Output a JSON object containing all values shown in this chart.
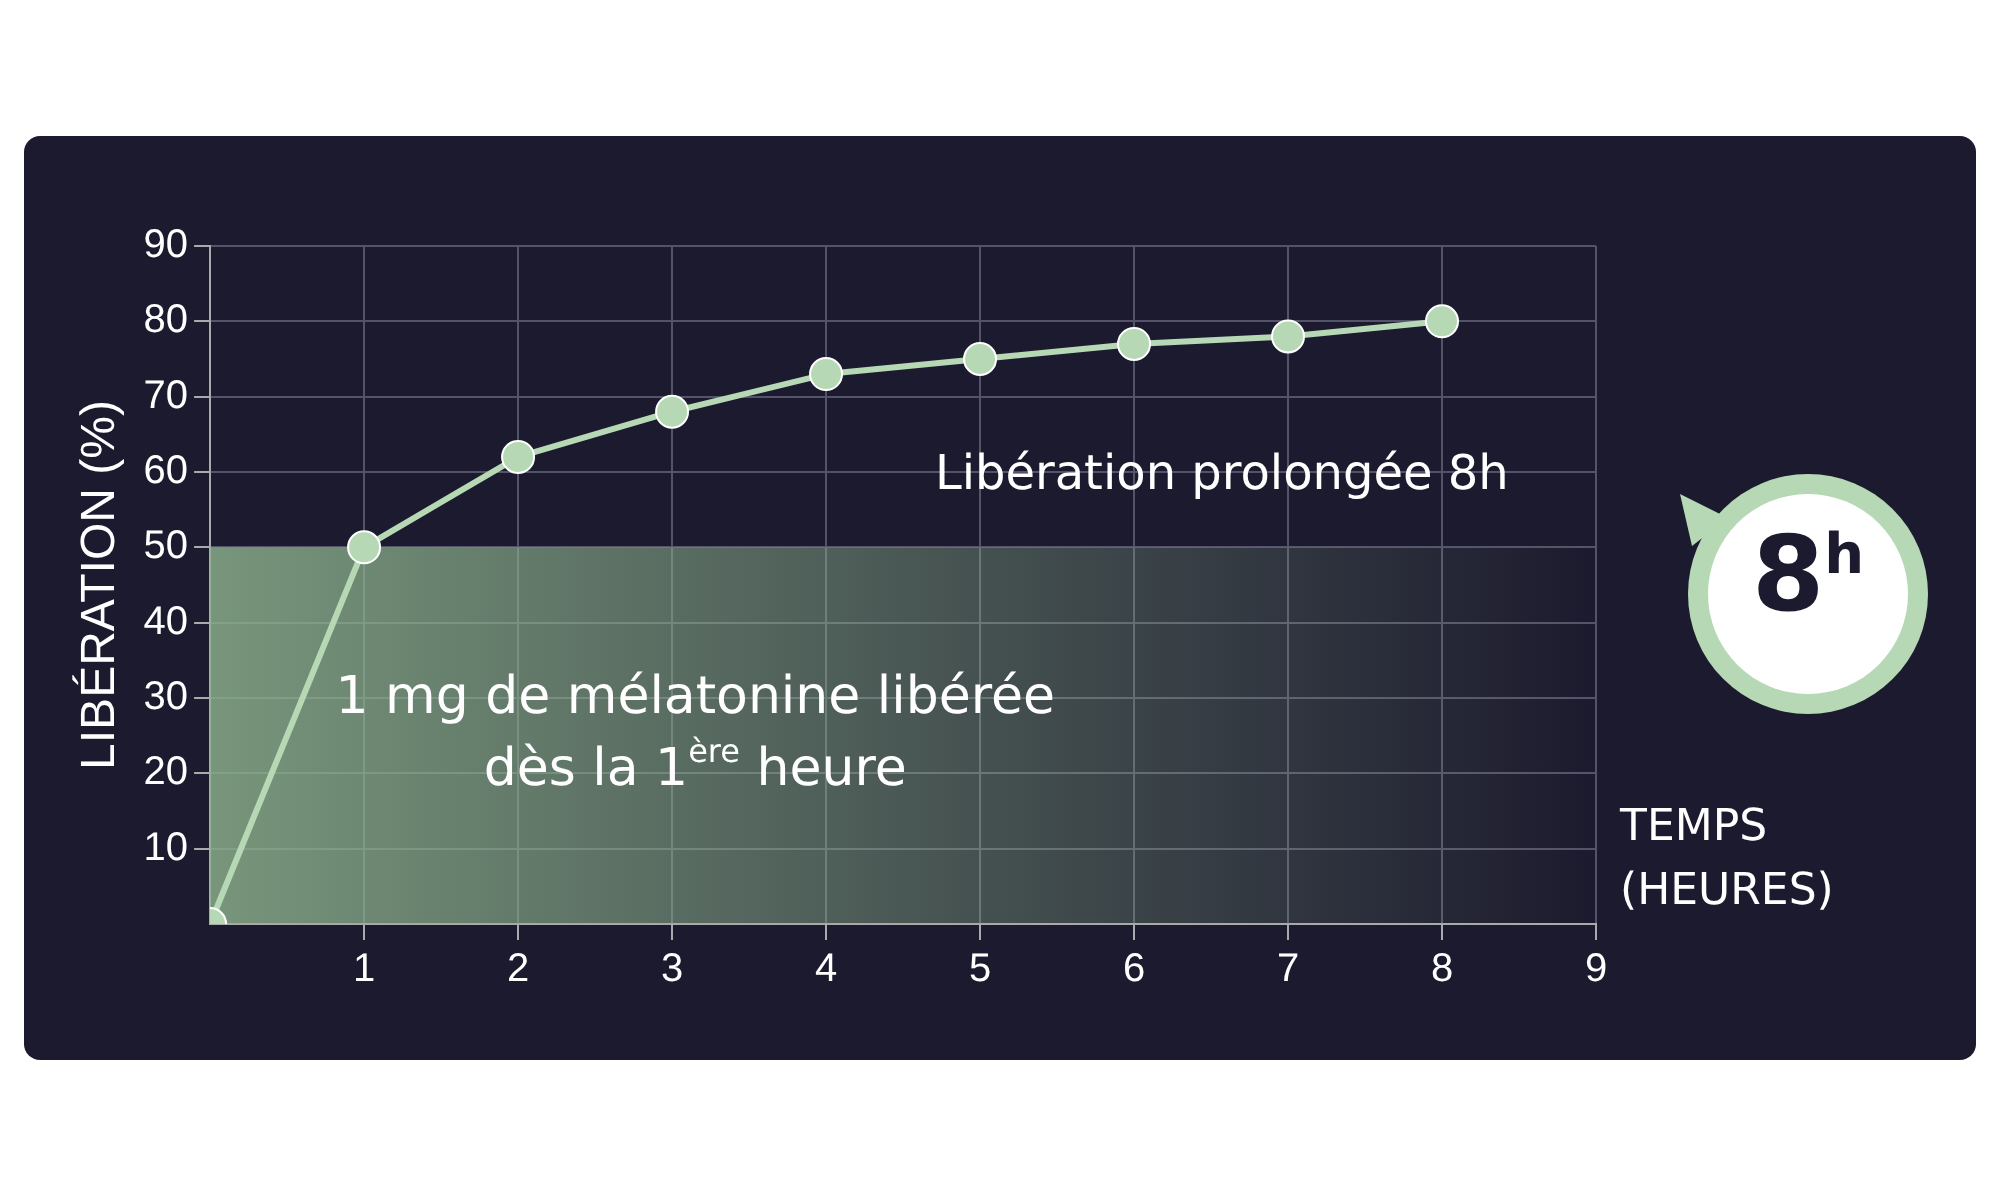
{
  "chart_data": {
    "type": "line",
    "ylabel": "LIBÉRATION (%)",
    "xlabel": "TEMPS (HEURES)",
    "x": [
      0,
      1,
      2,
      3,
      4,
      5,
      6,
      7,
      8
    ],
    "series": [
      {
        "color": "#b7d8b5",
        "values": [
          0,
          50,
          62,
          68,
          73,
          75,
          77,
          78,
          80
        ]
      }
    ],
    "xlim": [
      0,
      9
    ],
    "xticks": [
      1,
      2,
      3,
      4,
      5,
      6,
      7,
      8,
      9
    ],
    "ylim": [
      0,
      90
    ],
    "yticks": [
      10,
      20,
      30,
      40,
      50,
      60,
      70,
      80,
      90
    ],
    "grid": true,
    "marker": "circle",
    "line_style": "solid",
    "bands": [
      {
        "axis": "y",
        "from": 0,
        "to": 50,
        "color": "#8fb58f",
        "label": "1 mg de mélatonine libérée dès la 1$^{ère}$ heure"
      }
    ],
    "annotations": [
      "Libération prolongée 8h",
      "8$^{h}$"
    ]
  }
}
